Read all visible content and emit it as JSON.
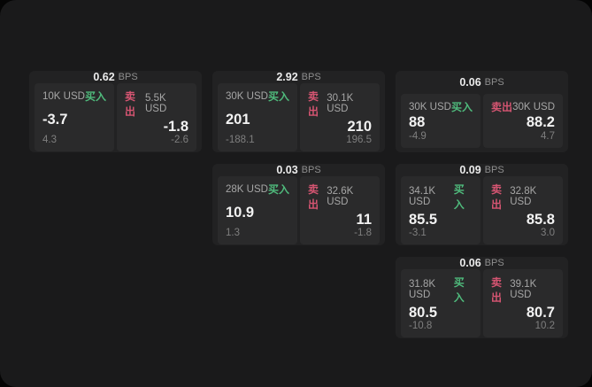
{
  "labels": {
    "buy": "买入",
    "sell": "卖出",
    "bps": "BPS"
  },
  "colors": {
    "buy": "#4fba7c",
    "sell": "#d65572",
    "panel_bg": "#1a1a1b",
    "card_bg": "#222223",
    "quote_bg": "#2a2a2b"
  },
  "cards": [
    {
      "bps": "0.62",
      "row": 1,
      "col": 1,
      "buy": {
        "size": "10K USD",
        "value": "-3.7",
        "sub": "4.3"
      },
      "sell": {
        "size": "5.5K USD",
        "value": "-1.8",
        "sub": "-2.6"
      }
    },
    {
      "bps": "2.92",
      "row": 1,
      "col": 2,
      "buy": {
        "size": "30K USD",
        "value": "201",
        "sub": "-188.1"
      },
      "sell": {
        "size": "30.1K USD",
        "value": "210",
        "sub": "196.5"
      }
    },
    {
      "bps": "0.06",
      "row": 1,
      "col": 3,
      "buy": {
        "size": "30K USD",
        "value": "88",
        "sub": "-4.9"
      },
      "sell": {
        "size": "30K USD",
        "value": "88.2",
        "sub": "4.7"
      }
    },
    {
      "bps": "0.03",
      "row": 2,
      "col": 2,
      "buy": {
        "size": "28K USD",
        "value": "10.9",
        "sub": "1.3"
      },
      "sell": {
        "size": "32.6K USD",
        "value": "11",
        "sub": "-1.8"
      }
    },
    {
      "bps": "0.09",
      "row": 2,
      "col": 3,
      "buy": {
        "size": "34.1K USD",
        "value": "85.5",
        "sub": "-3.1"
      },
      "sell": {
        "size": "32.8K USD",
        "value": "85.8",
        "sub": "3.0"
      }
    },
    {
      "bps": "0.06",
      "row": 3,
      "col": 3,
      "buy": {
        "size": "31.8K USD",
        "value": "80.5",
        "sub": "-10.8"
      },
      "sell": {
        "size": "39.1K USD",
        "value": "80.7",
        "sub": "10.2"
      }
    }
  ]
}
